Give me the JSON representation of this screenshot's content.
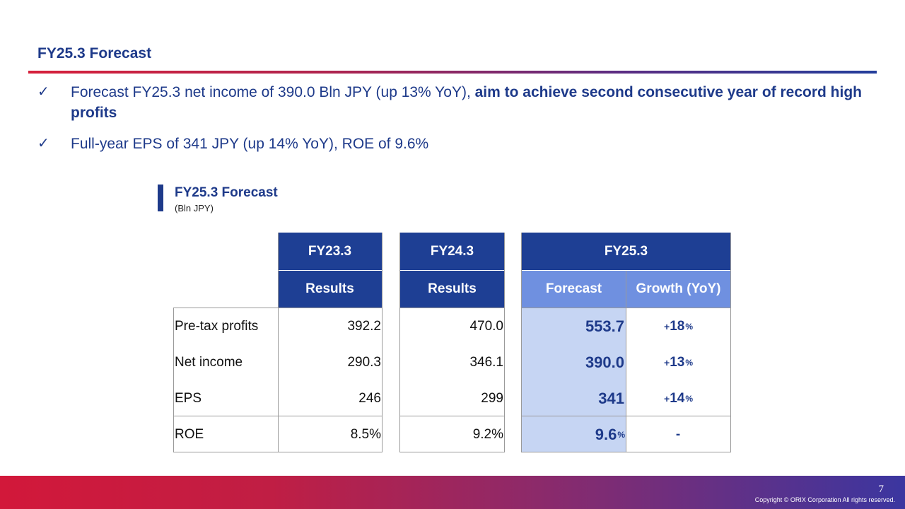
{
  "title": "FY25.3 Forecast",
  "bullets": [
    {
      "check": "✓",
      "text_plain": "Forecast FY25.3 net income of 390.0 Bln JPY (up 13% YoY), ",
      "text_bold": "aim to achieve second consecutive year of record high profits"
    },
    {
      "check": "✓",
      "text_plain": "Full-year EPS of 341 JPY (up 14% YoY),  ROE of 9.6%"
    }
  ],
  "section": {
    "title": "FY25.3 Forecast",
    "unit": "(Bln JPY)"
  },
  "table": {
    "col_groups": [
      "FY23.3",
      "FY24.3",
      "FY25.3"
    ],
    "col_subheaders": [
      "Results",
      "Results",
      "Forecast",
      "Growth (YoY)"
    ],
    "rows": [
      {
        "label": "Pre-tax profits",
        "fy23": "392.2",
        "fy24": "470.0",
        "fy25": "553.7",
        "fy25_unit": "",
        "growth_plus": "+",
        "growth": "18",
        "growth_unit": "%"
      },
      {
        "label": "Net income",
        "fy23": "290.3",
        "fy24": "346.1",
        "fy25": "390.0",
        "fy25_unit": "",
        "growth_plus": "+",
        "growth": "13",
        "growth_unit": "%"
      },
      {
        "label": "EPS",
        "fy23": "246",
        "fy24": "299",
        "fy25": "341",
        "fy25_unit": "",
        "growth_plus": "+",
        "growth": "14",
        "growth_unit": "%"
      },
      {
        "label": "ROE",
        "fy23": "8.5%",
        "fy24": "9.2%",
        "fy25": "9.6",
        "fy25_unit": "%",
        "growth_plus": "",
        "growth": "-",
        "growth_unit": ""
      }
    ]
  },
  "footer": {
    "page_number": "7",
    "copyright": "Copyright © ORIX Corporation All rights reserved."
  }
}
